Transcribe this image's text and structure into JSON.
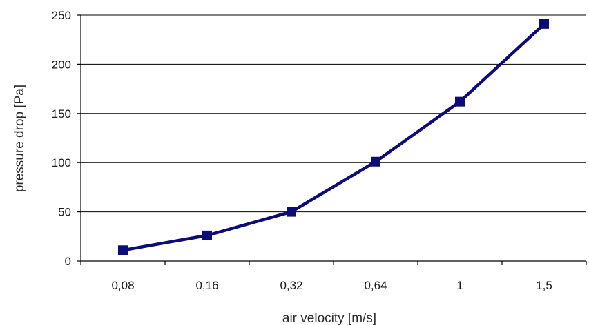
{
  "chart_data": {
    "type": "line",
    "categories": [
      "0,08",
      "0,16",
      "0,32",
      "0,64",
      "1",
      "1,5"
    ],
    "series": [
      {
        "values": [
          11,
          26,
          50,
          101,
          162,
          241
        ],
        "color": "#0b0b7a",
        "marker": "square"
      }
    ],
    "xlabel": "air velocity  [m/s]",
    "ylabel": "pressure drop  [Pa]",
    "ylim": [
      0,
      250
    ],
    "yticks": [
      0,
      50,
      100,
      150,
      200,
      250
    ],
    "grid": "horizontal",
    "legend": "none"
  }
}
